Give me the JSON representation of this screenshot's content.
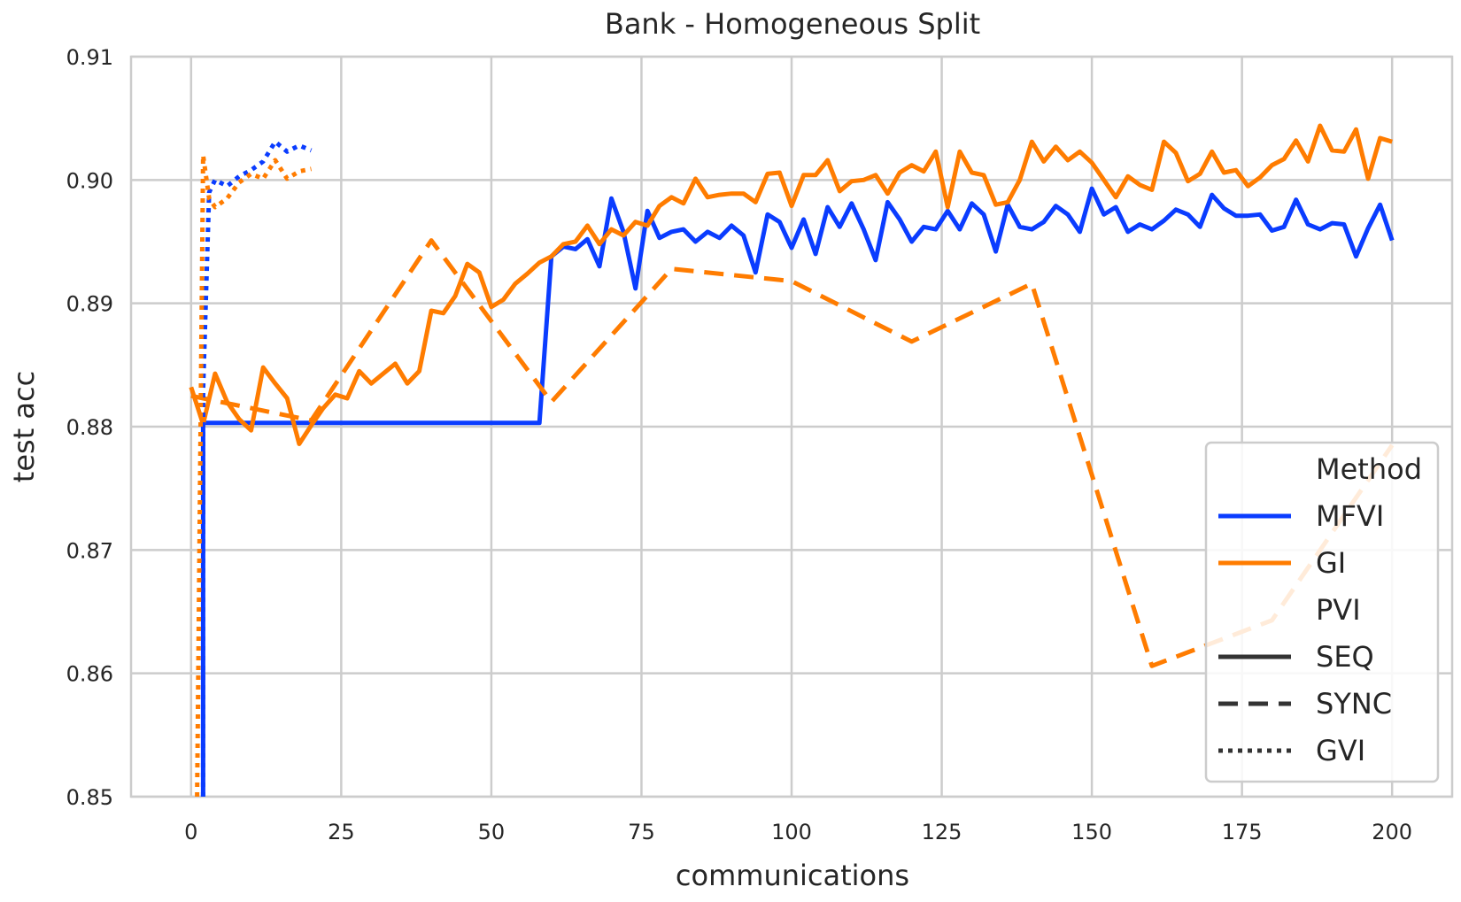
{
  "chart_data": {
    "type": "line",
    "title": "Bank - Homogeneous Split",
    "xlabel": "communications",
    "ylabel": "test acc",
    "xlim": [
      -10,
      210
    ],
    "ylim": [
      0.85,
      0.91
    ],
    "xticks": [
      0,
      25,
      50,
      75,
      100,
      125,
      150,
      175,
      200
    ],
    "yticks": [
      0.85,
      0.86,
      0.87,
      0.88,
      0.89,
      0.9,
      0.91
    ],
    "ytick_labels": [
      "0.85",
      "0.86",
      "0.87",
      "0.88",
      "0.89",
      "0.90",
      "0.91"
    ],
    "grid": true,
    "legend": {
      "position": "lower-right",
      "hue_title": "Method",
      "style_title": "PVI",
      "entries": [
        {
          "label": "MFVI",
          "kind": "hue",
          "color": "#0a3cff"
        },
        {
          "label": "GI",
          "kind": "hue",
          "color": "#ff7c00"
        },
        {
          "label": "SEQ",
          "kind": "style",
          "dash": "solid"
        },
        {
          "label": "SYNC",
          "kind": "style",
          "dash": "dashed"
        },
        {
          "label": "GVI",
          "kind": "style",
          "dash": "dotted"
        }
      ]
    },
    "colors": {
      "MFVI": "#0a3cff",
      "GI": "#ff7c00",
      "grid": "#cccccc",
      "legend_line": "#333333"
    },
    "series": [
      {
        "method": "MFVI",
        "pvi": "SEQ",
        "x": [
          2,
          2,
          4,
          8,
          12,
          16,
          20,
          30,
          40,
          50,
          58,
          60,
          62,
          64,
          66,
          68,
          70,
          72,
          74,
          76,
          78,
          80,
          82,
          84,
          86,
          88,
          90,
          92,
          94,
          96,
          98,
          100,
          102,
          104,
          106,
          108,
          110,
          112,
          114,
          116,
          118,
          120,
          122,
          124,
          126,
          128,
          130,
          132,
          134,
          136,
          138,
          140,
          142,
          144,
          146,
          148,
          150,
          152,
          154,
          156,
          158,
          160,
          162,
          164,
          166,
          168,
          170,
          172,
          174,
          176,
          178,
          180,
          182,
          184,
          186,
          188,
          190,
          192,
          194,
          196,
          198,
          200
        ],
        "y": [
          0.85,
          0.8803,
          0.8803,
          0.8803,
          0.8803,
          0.8803,
          0.8803,
          0.8803,
          0.8803,
          0.8803,
          0.8803,
          0.8938,
          0.8946,
          0.8944,
          0.8952,
          0.893,
          0.8985,
          0.8958,
          0.8912,
          0.8975,
          0.8953,
          0.8958,
          0.896,
          0.895,
          0.8958,
          0.8953,
          0.8963,
          0.8955,
          0.8925,
          0.8972,
          0.8966,
          0.8945,
          0.8968,
          0.894,
          0.8978,
          0.8962,
          0.8981,
          0.896,
          0.8935,
          0.8982,
          0.8968,
          0.895,
          0.8962,
          0.896,
          0.8975,
          0.896,
          0.8981,
          0.8972,
          0.8942,
          0.898,
          0.8962,
          0.896,
          0.8966,
          0.8979,
          0.8972,
          0.8958,
          0.8993,
          0.8972,
          0.8978,
          0.8958,
          0.8964,
          0.896,
          0.8967,
          0.8976,
          0.8972,
          0.8962,
          0.8988,
          0.8977,
          0.8971,
          0.8971,
          0.8972,
          0.8959,
          0.8962,
          0.8984,
          0.8964,
          0.896,
          0.8965,
          0.8964,
          0.8938,
          0.8961,
          0.898,
          0.8951
        ]
      },
      {
        "method": "GI",
        "pvi": "SEQ",
        "x": [
          0,
          2,
          4,
          6,
          8,
          10,
          12,
          14,
          16,
          18,
          20,
          22,
          24,
          26,
          28,
          30,
          32,
          34,
          36,
          38,
          40,
          42,
          44,
          46,
          48,
          50,
          52,
          54,
          56,
          58,
          60,
          62,
          64,
          66,
          68,
          70,
          72,
          74,
          76,
          78,
          80,
          82,
          84,
          86,
          88,
          90,
          92,
          94,
          96,
          98,
          100,
          102,
          104,
          106,
          108,
          110,
          112,
          114,
          116,
          118,
          120,
          122,
          124,
          126,
          128,
          130,
          132,
          134,
          136,
          138,
          140,
          142,
          144,
          146,
          148,
          150,
          152,
          154,
          156,
          158,
          160,
          162,
          164,
          166,
          168,
          170,
          172,
          174,
          176,
          178,
          180,
          182,
          184,
          186,
          188,
          190,
          192,
          194,
          196,
          198,
          200
        ],
        "y": [
          0.8832,
          0.8802,
          0.8843,
          0.882,
          0.8806,
          0.8797,
          0.8848,
          0.8835,
          0.8823,
          0.8786,
          0.8801,
          0.8815,
          0.8826,
          0.8823,
          0.8845,
          0.8835,
          0.8843,
          0.8851,
          0.8835,
          0.8845,
          0.8894,
          0.8892,
          0.8906,
          0.8932,
          0.8925,
          0.8897,
          0.8903,
          0.8916,
          0.8924,
          0.8933,
          0.8938,
          0.8948,
          0.895,
          0.8963,
          0.8948,
          0.896,
          0.8955,
          0.8966,
          0.8963,
          0.8979,
          0.8986,
          0.8981,
          0.9001,
          0.8986,
          0.8988,
          0.8989,
          0.8989,
          0.8982,
          0.9005,
          0.9006,
          0.8979,
          0.9004,
          0.9004,
          0.9016,
          0.8991,
          0.8999,
          0.9,
          0.9004,
          0.8989,
          0.9006,
          0.9012,
          0.9007,
          0.9023,
          0.8978,
          0.9023,
          0.9006,
          0.9004,
          0.898,
          0.8982,
          0.9,
          0.9031,
          0.9015,
          0.9027,
          0.9016,
          0.9023,
          0.9014,
          0.9,
          0.8986,
          0.9003,
          0.8996,
          0.8992,
          0.9031,
          0.9022,
          0.8999,
          0.9005,
          0.9023,
          0.9006,
          0.9008,
          0.8995,
          0.9002,
          0.9012,
          0.9017,
          0.9032,
          0.9015,
          0.9044,
          0.9024,
          0.9023,
          0.9041,
          0.9001,
          0.9034,
          0.9031
        ]
      },
      {
        "method": "GI",
        "pvi": "SYNC",
        "x": [
          0,
          20,
          40,
          60,
          80,
          100,
          120,
          140,
          160,
          180,
          200
        ],
        "y": [
          0.8825,
          0.8805,
          0.8951,
          0.882,
          0.8928,
          0.8918,
          0.8869,
          0.8916,
          0.8606,
          0.8643,
          0.8785
        ]
      },
      {
        "method": "MFVI",
        "pvi": "GVI",
        "x": [
          2,
          2,
          3,
          4,
          6,
          8,
          10,
          12,
          14,
          16,
          18,
          20
        ],
        "y": [
          0.85,
          0.883,
          0.899,
          0.9,
          0.8995,
          0.9003,
          0.9008,
          0.9015,
          0.9031,
          0.9023,
          0.9028,
          0.9024
        ]
      },
      {
        "method": "GI",
        "pvi": "GVI",
        "x": [
          1,
          2,
          3,
          4,
          6,
          8,
          10,
          12,
          14,
          16,
          18,
          20
        ],
        "y": [
          0.85,
          0.902,
          0.8985,
          0.8978,
          0.8985,
          0.8998,
          0.9005,
          0.9001,
          0.9016,
          0.9001,
          0.9007,
          0.9009
        ]
      }
    ]
  }
}
